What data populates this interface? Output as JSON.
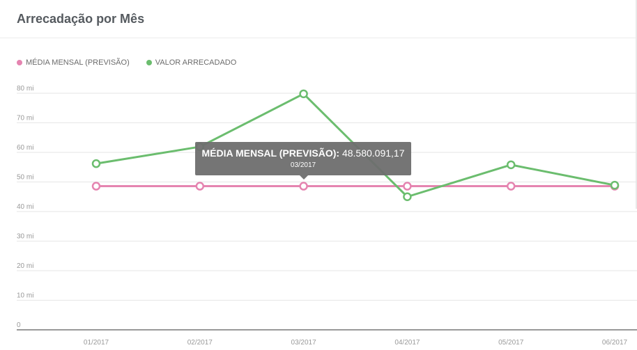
{
  "card": {
    "title": "Arrecadação por Mês"
  },
  "colors": {
    "media": "#e584b0",
    "valor": "#6bbd6e",
    "grid": "#e6e6e6",
    "axis": "#333333",
    "tick": "#999999"
  },
  "chart_data": {
    "type": "line",
    "categories": [
      "01/2017",
      "02/2017",
      "03/2017",
      "04/2017",
      "05/2017",
      "06/2017"
    ],
    "series": [
      {
        "name": "MÉDIA MENSAL (PREVISÃO)",
        "values": [
          48.58,
          48.58,
          48.58,
          48.58,
          48.58,
          48.58
        ]
      },
      {
        "name": "VALOR ARRECADADO",
        "values": [
          56.2,
          61.9,
          79.8,
          45.0,
          55.8,
          48.9
        ]
      }
    ],
    "yticks": [
      "0",
      "10 mi",
      "20 mi",
      "30 mi",
      "40 mi",
      "50 mi",
      "60 mi",
      "70 mi",
      "80 mi"
    ],
    "ylim": [
      0,
      80
    ],
    "legend": "top-left",
    "grid": true
  },
  "tooltip": {
    "label": "MÉDIA MENSAL (PREVISÃO):",
    "value": "48.580.091,17",
    "category": "03/2017"
  }
}
